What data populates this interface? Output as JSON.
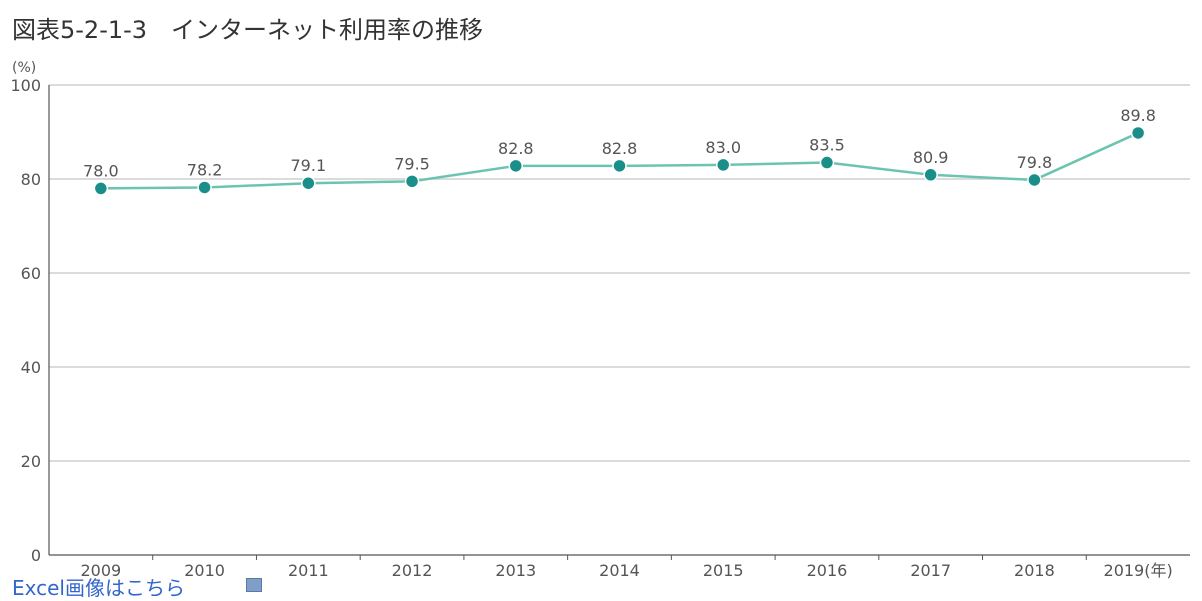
{
  "page": {
    "title": "図表5-2-1-3　インターネット利用率の推移"
  },
  "colors": {
    "line": "#6cc4b0",
    "marker": "#1a8f8a",
    "grid": "#cfcfcf",
    "axis": "#555555",
    "text": "#555555"
  },
  "footer": {
    "link_text": "Excel画像はこちら",
    "icon": "excel-file-icon"
  },
  "chart_data": {
    "type": "line",
    "title": "図表5-2-1-3　インターネット利用率の推移",
    "x_unit": "(年)",
    "y_unit": "(%)",
    "categories": [
      "2009",
      "2010",
      "2011",
      "2012",
      "2013",
      "2014",
      "2015",
      "2016",
      "2017",
      "2018",
      "2019"
    ],
    "series": [
      {
        "values": [
          78.0,
          78.2,
          79.1,
          79.5,
          82.8,
          82.8,
          83.0,
          83.5,
          80.9,
          79.8,
          89.8
        ],
        "labels": [
          "78.0",
          "78.2",
          "79.1",
          "79.5",
          "82.8",
          "82.8",
          "83.0",
          "83.5",
          "80.9",
          "79.8",
          "89.8"
        ]
      }
    ],
    "ylim": [
      0,
      100
    ],
    "yticks": [
      0,
      20,
      40,
      60,
      80,
      100
    ],
    "grid": true,
    "legend": "none"
  }
}
